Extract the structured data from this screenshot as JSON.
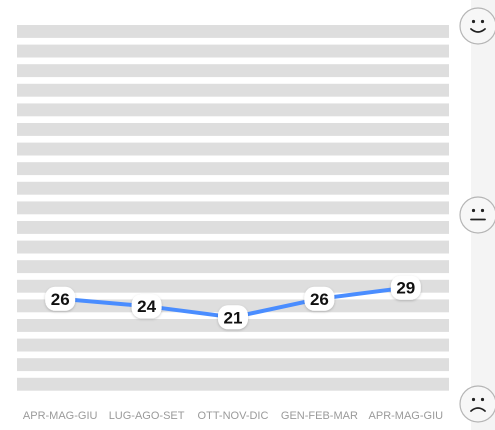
{
  "colors": {
    "line": "#4a8dff",
    "band": "#dedede",
    "panel": "#f4f4f4",
    "axis_text": "#9a9a9a",
    "label_text": "#111111",
    "label_bg": "#ffffff"
  },
  "icons": {
    "top": "smiling-face-icon",
    "middle": "neutral-face-icon",
    "bottom": "frowning-face-icon"
  },
  "chart_data": {
    "type": "line",
    "categories": [
      "APR-MAG-GIU",
      "LUG-AGO-SET",
      "OTT-NOV-DIC",
      "GEN-FEB-MAR",
      "APR-MAG-GIU"
    ],
    "series": [
      {
        "values": [
          26,
          24,
          21,
          26,
          29
        ]
      }
    ],
    "data_labels": [
      "26",
      "24",
      "21",
      "26",
      "29"
    ],
    "ylim": [
      0,
      100
    ],
    "grid": true,
    "legend": "none",
    "title": "",
    "xlabel": "",
    "ylabel": ""
  }
}
